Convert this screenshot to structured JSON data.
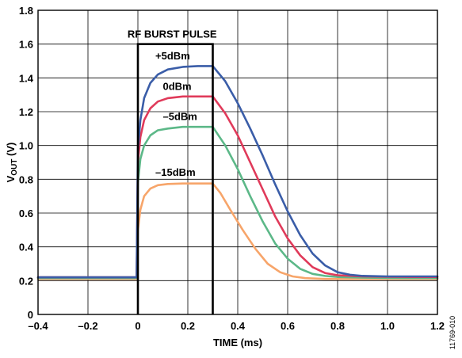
{
  "chart_data": {
    "type": "line",
    "xlabel": "TIME (ms)",
    "ylabel": "V",
    "ylabel_sub": "OUT",
    "ylabel_suffix": " (V)",
    "xlim": [
      -0.4,
      1.2
    ],
    "ylim": [
      0,
      1.8
    ],
    "xticks": [
      -0.4,
      -0.2,
      0,
      0.2,
      0.4,
      0.6,
      0.8,
      1.0,
      1.2
    ],
    "xtick_labels": [
      "–0.4",
      "–0.2",
      "0",
      "0.2",
      "0.4",
      "0.6",
      "0.8",
      "1.0",
      "1.2"
    ],
    "yticks": [
      0,
      0.2,
      0.4,
      0.6,
      0.8,
      1.0,
      1.2,
      1.4,
      1.6,
      1.8
    ],
    "ytick_labels": [
      "0",
      "0.2",
      "0.4",
      "0.6",
      "0.8",
      "1.0",
      "1.2",
      "1.4",
      "1.6",
      "1.8"
    ],
    "grid": true,
    "pulse": {
      "label": "RF BURST PULSE",
      "start": 0.0,
      "end": 0.3,
      "top": 1.6
    },
    "series": [
      {
        "name": "+5dBm",
        "color": "#3a5da8",
        "x": [
          -0.4,
          -0.005,
          0.0,
          0.01,
          0.025,
          0.05,
          0.08,
          0.12,
          0.18,
          0.24,
          0.3,
          0.35,
          0.4,
          0.45,
          0.5,
          0.55,
          0.6,
          0.65,
          0.7,
          0.75,
          0.8,
          0.85,
          0.9,
          1.0,
          1.1,
          1.2
        ],
        "y": [
          0.22,
          0.22,
          0.98,
          1.15,
          1.28,
          1.37,
          1.42,
          1.45,
          1.465,
          1.47,
          1.47,
          1.38,
          1.25,
          1.1,
          0.94,
          0.77,
          0.61,
          0.47,
          0.36,
          0.29,
          0.25,
          0.235,
          0.228,
          0.225,
          0.225,
          0.225
        ]
      },
      {
        "name": "0dBm",
        "color": "#e03a5a",
        "x": [
          -0.4,
          -0.005,
          0.0,
          0.01,
          0.025,
          0.05,
          0.08,
          0.12,
          0.18,
          0.24,
          0.3,
          0.35,
          0.4,
          0.45,
          0.5,
          0.55,
          0.6,
          0.65,
          0.7,
          0.75,
          0.8,
          0.9,
          1.0,
          1.1,
          1.2
        ],
        "y": [
          0.22,
          0.22,
          0.9,
          1.05,
          1.15,
          1.22,
          1.26,
          1.28,
          1.29,
          1.29,
          1.29,
          1.19,
          1.06,
          0.9,
          0.74,
          0.58,
          0.45,
          0.35,
          0.28,
          0.245,
          0.232,
          0.225,
          0.223,
          0.222,
          0.222
        ]
      },
      {
        "name": "–5dBm",
        "color": "#5cb888",
        "x": [
          -0.4,
          -0.005,
          0.0,
          0.01,
          0.025,
          0.05,
          0.08,
          0.12,
          0.18,
          0.24,
          0.3,
          0.35,
          0.4,
          0.45,
          0.5,
          0.55,
          0.6,
          0.65,
          0.7,
          0.75,
          0.8,
          0.9,
          1.0,
          1.1,
          1.2
        ],
        "y": [
          0.215,
          0.215,
          0.78,
          0.92,
          1.0,
          1.06,
          1.09,
          1.1,
          1.11,
          1.11,
          1.11,
          1.0,
          0.86,
          0.7,
          0.55,
          0.42,
          0.33,
          0.27,
          0.24,
          0.228,
          0.222,
          0.218,
          0.216,
          0.215,
          0.215
        ]
      },
      {
        "name": "–15dBm",
        "color": "#f7a56a",
        "x": [
          -0.4,
          -0.005,
          0.0,
          0.01,
          0.025,
          0.05,
          0.08,
          0.12,
          0.18,
          0.24,
          0.3,
          0.33,
          0.37,
          0.42,
          0.47,
          0.52,
          0.57,
          0.62,
          0.67,
          0.75,
          0.9,
          1.0,
          1.2
        ],
        "y": [
          0.21,
          0.21,
          0.5,
          0.62,
          0.7,
          0.745,
          0.765,
          0.772,
          0.775,
          0.775,
          0.775,
          0.72,
          0.62,
          0.5,
          0.39,
          0.3,
          0.25,
          0.225,
          0.215,
          0.21,
          0.21,
          0.21,
          0.21
        ]
      }
    ],
    "annotations": [
      {
        "text": "+5dBm",
        "x": 0.07,
        "y": 1.51
      },
      {
        "text": "0dBm",
        "x": 0.1,
        "y": 1.33
      },
      {
        "text": "–5dBm",
        "x": 0.1,
        "y": 1.15
      },
      {
        "text": "–15dBm",
        "x": 0.07,
        "y": 0.82
      }
    ],
    "figure_id": "11769-010"
  }
}
